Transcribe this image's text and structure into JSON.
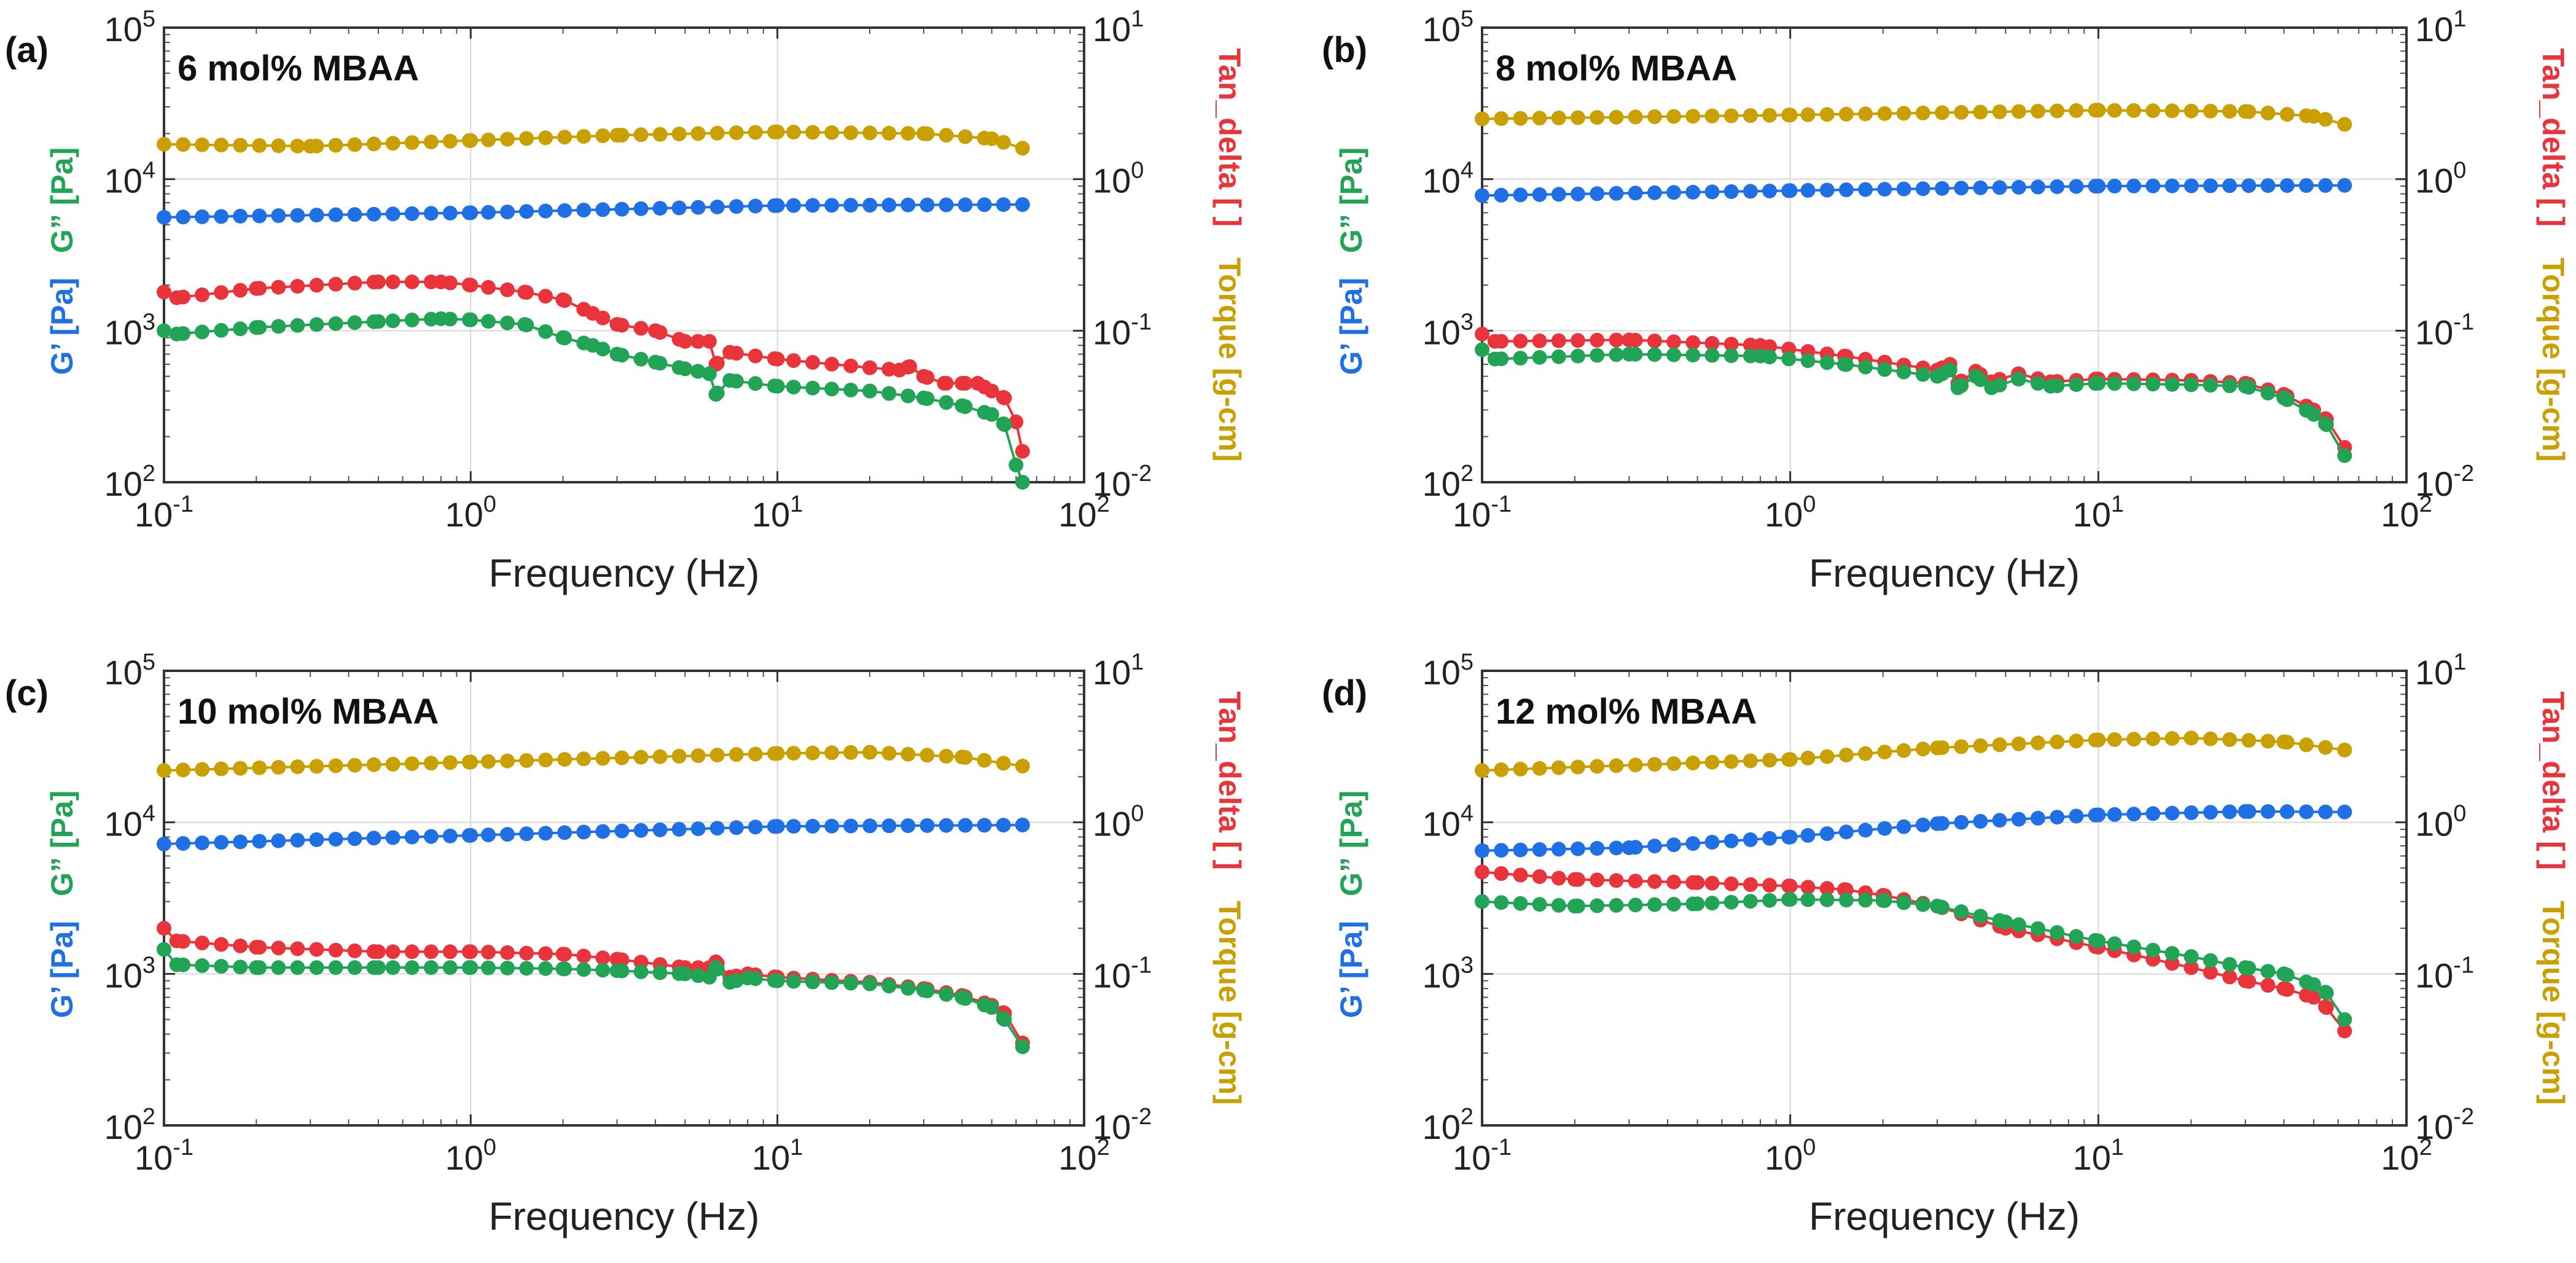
{
  "chart_data": [
    {
      "type": "scatter",
      "panel_label": "(a)",
      "title": "6 mol% MBAA",
      "xlabel": "Frequency (Hz)",
      "xscale": "log",
      "xlim": [
        0.1,
        100
      ],
      "left_axis": {
        "scale": "log",
        "ylim": [
          100,
          100000
        ],
        "labels": [
          {
            "text": "G’ [Pa]",
            "color": "#1f6fe5"
          },
          {
            "text": "G” [Pa]",
            "color": "#22a456"
          }
        ]
      },
      "right_axis": {
        "scale": "log",
        "ylim": [
          0.01,
          10
        ],
        "labels": [
          {
            "text": "Torque [g-cm]",
            "color": "#c9a000"
          },
          {
            "text": "Tan_delta [ ]",
            "color": "#e8343a"
          }
        ]
      },
      "x_tick_labels": [
        {
          "base": "10",
          "exp": "-1"
        },
        {
          "base": "10",
          "exp": "0"
        },
        {
          "base": "10",
          "exp": "1"
        },
        {
          "base": "10",
          "exp": "2"
        }
      ],
      "y_tick_labels": [
        {
          "base": "10",
          "exp": "2"
        },
        {
          "base": "10",
          "exp": "3"
        },
        {
          "base": "10",
          "exp": "4"
        },
        {
          "base": "10",
          "exp": "5"
        }
      ],
      "y2_tick_labels": [
        {
          "base": "10",
          "exp": "-2"
        },
        {
          "base": "10",
          "exp": "-1"
        },
        {
          "base": "10",
          "exp": "0"
        },
        {
          "base": "10",
          "exp": "1"
        }
      ],
      "series": [
        {
          "name": "Torque [g-cm]",
          "axis": "right",
          "color": "#c9a000",
          "x_points": [
            0.1,
            0.3,
            1,
            3,
            10,
            30,
            50,
            63
          ],
          "y_points": [
            1.7,
            1.65,
            1.8,
            1.95,
            2.05,
            2.0,
            1.85,
            1.6
          ]
        },
        {
          "name": "G’ [Pa]",
          "axis": "left",
          "color": "#1f6fe5",
          "x_points": [
            0.1,
            1,
            10,
            63
          ],
          "y_points": [
            5600,
            6000,
            6700,
            6800
          ]
        },
        {
          "name": "Tan_delta [ ]",
          "axis": "right",
          "color": "#e8343a",
          "x_points": [
            0.1,
            0.11,
            0.2,
            0.5,
            0.8,
            1,
            1.5,
            2,
            2.5,
            3,
            4,
            5,
            5.5,
            6,
            6.3,
            7,
            10,
            20,
            25,
            27,
            30,
            35,
            40,
            45,
            50,
            55,
            60,
            63
          ],
          "y_points": [
            0.18,
            0.165,
            0.19,
            0.21,
            0.21,
            0.2,
            0.18,
            0.16,
            0.13,
            0.11,
            0.1,
            0.085,
            0.085,
            0.085,
            0.06,
            0.072,
            0.065,
            0.057,
            0.055,
            0.058,
            0.05,
            0.045,
            0.045,
            0.045,
            0.04,
            0.036,
            0.025,
            0.016
          ]
        },
        {
          "name": "G” [Pa]",
          "axis": "left",
          "color": "#22a456",
          "x_points": [
            0.1,
            0.11,
            0.2,
            0.5,
            0.8,
            1,
            1.5,
            2,
            2.5,
            3,
            4,
            5,
            5.5,
            6,
            6.3,
            7,
            10,
            20,
            30,
            40,
            50,
            55,
            60,
            63
          ],
          "y_points": [
            1000,
            950,
            1050,
            1150,
            1200,
            1180,
            1100,
            900,
            800,
            700,
            620,
            560,
            540,
            520,
            380,
            470,
            430,
            400,
            360,
            320,
            280,
            240,
            130,
            100
          ]
        }
      ]
    },
    {
      "type": "scatter",
      "panel_label": "(b)",
      "title": "8 mol% MBAA",
      "xlabel": "Frequency (Hz)",
      "xscale": "log",
      "xlim": [
        0.1,
        100
      ],
      "left_axis": {
        "scale": "log",
        "ylim": [
          100,
          100000
        ],
        "labels": [
          {
            "text": "G’ [Pa]",
            "color": "#1f6fe5"
          },
          {
            "text": "G” [Pa]",
            "color": "#22a456"
          }
        ]
      },
      "right_axis": {
        "scale": "log",
        "ylim": [
          0.01,
          10
        ],
        "labels": [
          {
            "text": "Torque [g-cm]",
            "color": "#c9a000"
          },
          {
            "text": "Tan_delta [ ]",
            "color": "#e8343a"
          }
        ]
      },
      "x_tick_labels": [
        {
          "base": "10",
          "exp": "-1"
        },
        {
          "base": "10",
          "exp": "0"
        },
        {
          "base": "10",
          "exp": "1"
        },
        {
          "base": "10",
          "exp": "2"
        }
      ],
      "y_tick_labels": [
        {
          "base": "10",
          "exp": "2"
        },
        {
          "base": "10",
          "exp": "3"
        },
        {
          "base": "10",
          "exp": "4"
        },
        {
          "base": "10",
          "exp": "5"
        }
      ],
      "y2_tick_labels": [
        {
          "base": "10",
          "exp": "-2"
        },
        {
          "base": "10",
          "exp": "-1"
        },
        {
          "base": "10",
          "exp": "0"
        },
        {
          "base": "10",
          "exp": "1"
        }
      ],
      "series": [
        {
          "name": "Torque [g-cm]",
          "axis": "right",
          "color": "#c9a000",
          "x_points": [
            0.1,
            1,
            10,
            30,
            50,
            63
          ],
          "y_points": [
            2.5,
            2.65,
            2.85,
            2.8,
            2.6,
            2.3
          ]
        },
        {
          "name": "G’ [Pa]",
          "axis": "left",
          "color": "#1f6fe5",
          "x_points": [
            0.1,
            1,
            10,
            63
          ],
          "y_points": [
            7800,
            8400,
            9000,
            9100
          ]
        },
        {
          "name": "Tan_delta [ ]",
          "axis": "right",
          "color": "#e8343a",
          "x_points": [
            0.1,
            0.11,
            0.3,
            0.8,
            1.5,
            3,
            3.3,
            3.5,
            4,
            4.5,
            5.5,
            7,
            10,
            20,
            30,
            40,
            50,
            55,
            63
          ],
          "y_points": [
            0.095,
            0.085,
            0.087,
            0.08,
            0.068,
            0.055,
            0.06,
            0.045,
            0.054,
            0.046,
            0.052,
            0.046,
            0.048,
            0.047,
            0.045,
            0.038,
            0.03,
            0.026,
            0.017
          ]
        },
        {
          "name": "G” [Pa]",
          "axis": "left",
          "color": "#22a456",
          "x_points": [
            0.1,
            0.11,
            0.3,
            0.8,
            1.5,
            3,
            3.3,
            3.5,
            4,
            4.5,
            5.5,
            7,
            10,
            20,
            30,
            40,
            50,
            55,
            63
          ],
          "y_points": [
            750,
            650,
            700,
            680,
            600,
            500,
            550,
            420,
            500,
            420,
            480,
            430,
            450,
            440,
            430,
            360,
            280,
            240,
            150
          ]
        }
      ]
    },
    {
      "type": "scatter",
      "panel_label": "(c)",
      "title": "10 mol% MBAA",
      "xlabel": "Frequency (Hz)",
      "xscale": "log",
      "xlim": [
        0.1,
        100
      ],
      "left_axis": {
        "scale": "log",
        "ylim": [
          100,
          100000
        ],
        "labels": [
          {
            "text": "G’ [Pa]",
            "color": "#1f6fe5"
          },
          {
            "text": "G” [Pa]",
            "color": "#22a456"
          }
        ]
      },
      "right_axis": {
        "scale": "log",
        "ylim": [
          0.01,
          10
        ],
        "labels": [
          {
            "text": "Torque [g-cm]",
            "color": "#c9a000"
          },
          {
            "text": "Tan_delta [ ]",
            "color": "#e8343a"
          }
        ]
      },
      "x_tick_labels": [
        {
          "base": "10",
          "exp": "-1"
        },
        {
          "base": "10",
          "exp": "0"
        },
        {
          "base": "10",
          "exp": "1"
        },
        {
          "base": "10",
          "exp": "2"
        }
      ],
      "y_tick_labels": [
        {
          "base": "10",
          "exp": "2"
        },
        {
          "base": "10",
          "exp": "3"
        },
        {
          "base": "10",
          "exp": "4"
        },
        {
          "base": "10",
          "exp": "5"
        }
      ],
      "y2_tick_labels": [
        {
          "base": "10",
          "exp": "-2"
        },
        {
          "base": "10",
          "exp": "-1"
        },
        {
          "base": "10",
          "exp": "0"
        },
        {
          "base": "10",
          "exp": "1"
        }
      ],
      "series": [
        {
          "name": "Torque [g-cm]",
          "axis": "right",
          "color": "#c9a000",
          "x_points": [
            0.1,
            1,
            10,
            20,
            40,
            63
          ],
          "y_points": [
            2.2,
            2.5,
            2.85,
            2.9,
            2.7,
            2.35
          ]
        },
        {
          "name": "G’ [Pa]",
          "axis": "left",
          "color": "#1f6fe5",
          "x_points": [
            0.1,
            1,
            10,
            63
          ],
          "y_points": [
            7200,
            8200,
            9400,
            9600
          ]
        },
        {
          "name": "Tan_delta [ ]",
          "axis": "right",
          "color": "#e8343a",
          "x_points": [
            0.1,
            0.11,
            0.2,
            0.5,
            1,
            2,
            3,
            5,
            6,
            6.3,
            7,
            8,
            10,
            20,
            30,
            40,
            50,
            55,
            63
          ],
          "y_points": [
            0.2,
            0.165,
            0.15,
            0.14,
            0.14,
            0.135,
            0.125,
            0.11,
            0.11,
            0.12,
            0.095,
            0.1,
            0.095,
            0.088,
            0.08,
            0.072,
            0.062,
            0.055,
            0.035
          ]
        },
        {
          "name": "G” [Pa]",
          "axis": "left",
          "color": "#22a456",
          "x_points": [
            0.1,
            0.11,
            0.2,
            0.5,
            1,
            2,
            3,
            5,
            6,
            6.3,
            7,
            8,
            10,
            20,
            30,
            40,
            50,
            55,
            63
          ],
          "y_points": [
            1450,
            1150,
            1100,
            1100,
            1100,
            1080,
            1050,
            1000,
            950,
            1100,
            880,
            940,
            900,
            860,
            780,
            700,
            600,
            500,
            330
          ]
        }
      ]
    },
    {
      "type": "scatter",
      "panel_label": "(d)",
      "title": "12 mol% MBAA",
      "xlabel": "Frequency (Hz)",
      "xscale": "log",
      "xlim": [
        0.1,
        100
      ],
      "left_axis": {
        "scale": "log",
        "ylim": [
          100,
          100000
        ],
        "labels": [
          {
            "text": "G’ [Pa]",
            "color": "#1f6fe5"
          },
          {
            "text": "G” [Pa]",
            "color": "#22a456"
          }
        ]
      },
      "right_axis": {
        "scale": "log",
        "ylim": [
          0.01,
          10
        ],
        "labels": [
          {
            "text": "Torque [g-cm]",
            "color": "#c9a000"
          },
          {
            "text": "Tan_delta [ ]",
            "color": "#e8343a"
          }
        ]
      },
      "x_tick_labels": [
        {
          "base": "10",
          "exp": "-1"
        },
        {
          "base": "10",
          "exp": "0"
        },
        {
          "base": "10",
          "exp": "1"
        },
        {
          "base": "10",
          "exp": "2"
        }
      ],
      "y_tick_labels": [
        {
          "base": "10",
          "exp": "2"
        },
        {
          "base": "10",
          "exp": "3"
        },
        {
          "base": "10",
          "exp": "4"
        },
        {
          "base": "10",
          "exp": "5"
        }
      ],
      "y2_tick_labels": [
        {
          "base": "10",
          "exp": "-2"
        },
        {
          "base": "10",
          "exp": "-1"
        },
        {
          "base": "10",
          "exp": "0"
        },
        {
          "base": "10",
          "exp": "1"
        }
      ],
      "series": [
        {
          "name": "Torque [g-cm]",
          "axis": "right",
          "color": "#c9a000",
          "x_points": [
            0.1,
            1,
            3,
            10,
            20,
            40,
            63
          ],
          "y_points": [
            2.2,
            2.6,
            3.1,
            3.5,
            3.6,
            3.4,
            3.0
          ]
        },
        {
          "name": "G’ [Pa]",
          "axis": "left",
          "color": "#1f6fe5",
          "x_points": [
            0.1,
            0.3,
            1,
            3,
            10,
            30,
            63
          ],
          "y_points": [
            6500,
            6800,
            8000,
            9800,
            11200,
            11800,
            11700
          ]
        },
        {
          "name": "Tan_delta [ ]",
          "axis": "right",
          "color": "#e8343a",
          "x_points": [
            0.1,
            0.2,
            0.5,
            1,
            1.5,
            2,
            3,
            5,
            10,
            20,
            30,
            40,
            50,
            55,
            63
          ],
          "y_points": [
            0.47,
            0.42,
            0.4,
            0.38,
            0.36,
            0.33,
            0.28,
            0.2,
            0.15,
            0.11,
            0.09,
            0.08,
            0.07,
            0.06,
            0.042
          ]
        },
        {
          "name": "G” [Pa]",
          "axis": "left",
          "color": "#22a456",
          "x_points": [
            0.1,
            0.2,
            0.5,
            1,
            2,
            3,
            5,
            10,
            20,
            30,
            40,
            50,
            55,
            63
          ],
          "y_points": [
            3000,
            2800,
            2900,
            3100,
            3050,
            2800,
            2200,
            1650,
            1300,
            1100,
            1000,
            850,
            750,
            500
          ]
        }
      ]
    }
  ]
}
